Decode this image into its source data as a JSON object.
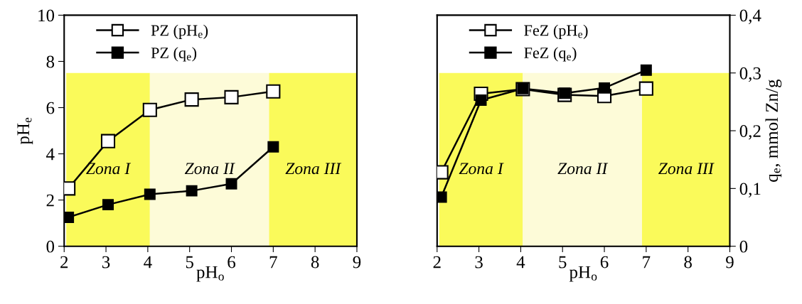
{
  "chart_data": [
    {
      "type": "line",
      "xlabel": "pH$_{o}$",
      "ylabel": "pH$_{e}$",
      "xlim": [
        2,
        9
      ],
      "xticks": [
        2,
        3,
        4,
        5,
        6,
        7,
        8,
        9
      ],
      "ylim": [
        0,
        10
      ],
      "yticks": [
        0,
        2,
        4,
        6,
        8,
        10
      ],
      "x": [
        2.1,
        3.05,
        4.05,
        5.05,
        6.0,
        7.0
      ],
      "series": [
        {
          "name": "PZ (pH$_{e}$)",
          "color": "#ffffff",
          "values": [
            2.5,
            4.55,
            5.9,
            6.35,
            6.45,
            6.7
          ]
        },
        {
          "name": "PZ (q$_{e}$)",
          "color": "#000000",
          "values": [
            1.25,
            1.8,
            2.25,
            2.4,
            2.7,
            4.3
          ]
        }
      ],
      "bands": [
        {
          "axis": "x",
          "from": 2.05,
          "to": 4.05,
          "label": "Zona I",
          "color": "#fafa5a"
        },
        {
          "axis": "x",
          "from": 4.05,
          "to": 6.9,
          "label": "Zona II",
          "color": "#fdfbd8"
        },
        {
          "axis": "x",
          "from": 6.9,
          "to": 9,
          "label": "Zona III",
          "color": "#fafa5a"
        }
      ],
      "marker": "square",
      "line_style": "solid",
      "legend": "top left",
      "grid": false
    },
    {
      "type": "line",
      "xlabel": "pH$_{o}$",
      "y2label": "q$_{e}$, mmol Zn/g",
      "xlim": [
        2,
        9
      ],
      "xticks": [
        2,
        3,
        4,
        5,
        6,
        7,
        8,
        9
      ],
      "y2lim": [
        0,
        0.4
      ],
      "y2ticks": [
        0,
        {
          "value": 0.1,
          "label": "0,1"
        },
        {
          "value": 0.2,
          "label": "0,2"
        },
        {
          "value": 0.3,
          "label": "0,3"
        },
        {
          "value": 0.4,
          "label": "0,4"
        }
      ],
      "x": [
        2.1,
        3.05,
        4.05,
        5.05,
        6.0,
        7.0
      ],
      "series": [
        {
          "name": "FeZ (pH$_{e}$)",
          "color": "#ffffff",
          "axis": "y2",
          "values": [
            0.128,
            0.264,
            0.272,
            0.262,
            0.26,
            0.273
          ]
        },
        {
          "name": "FeZ (q$_{e}$)",
          "color": "#000000",
          "axis": "y2",
          "values": [
            0.085,
            0.253,
            0.273,
            0.265,
            0.274,
            0.305
          ]
        }
      ],
      "bands": [
        {
          "axis": "x",
          "from": 2.05,
          "to": 4.05,
          "label": "Zona I",
          "color": "#fafa5a"
        },
        {
          "axis": "x",
          "from": 4.05,
          "to": 6.9,
          "label": "Zona II",
          "color": "#fdfbd8"
        },
        {
          "axis": "x",
          "from": 6.9,
          "to": 9,
          "label": "Zona III",
          "color": "#fafa5a"
        }
      ],
      "marker": "square",
      "line_style": "solid",
      "legend": "top left",
      "grid": false
    }
  ]
}
